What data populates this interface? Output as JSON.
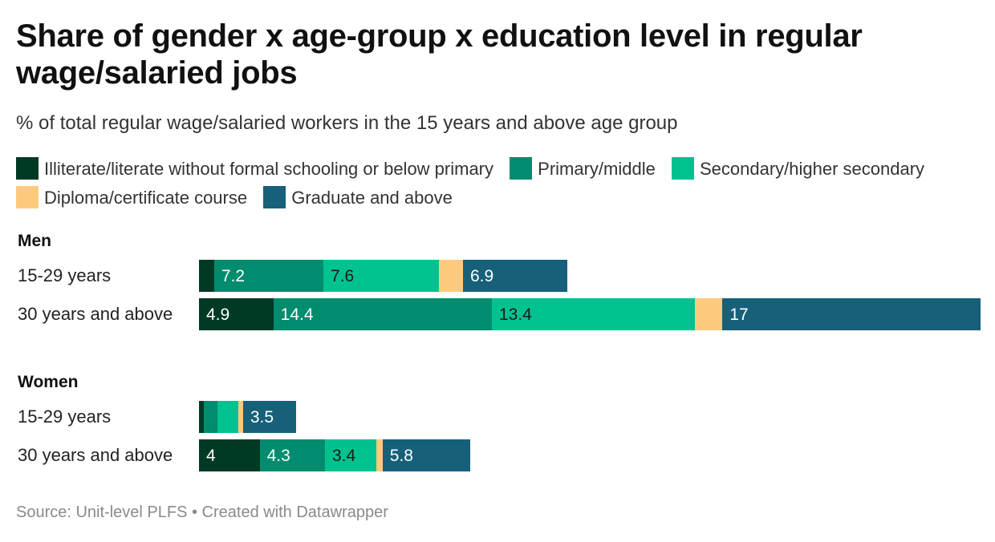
{
  "title": "Share of gender x age-group x education level in regular wage/salaried jobs",
  "subtitle": "% of total regular wage/salaried workers in the 15 years and above age group",
  "source": "Source: Unit-level PLFS • Created with Datawrapper",
  "legend": [
    {
      "label": "Illiterate/literate without formal schooling or below primary",
      "color": "#003a24"
    },
    {
      "label": "Primary/middle",
      "color": "#008c6e"
    },
    {
      "label": "Secondary/higher secondary",
      "color": "#00c28f"
    },
    {
      "label": "Diploma/certificate course",
      "color": "#fdca7d"
    },
    {
      "label": "Graduate and above",
      "color": "#16607a"
    }
  ],
  "chart_data": {
    "type": "bar",
    "orientation": "horizontal",
    "stacked": true,
    "title": "Share of gender x age-group x education level in regular wage/salaried jobs",
    "subtitle": "% of total regular wage/salaried workers in the 15 years and above age group",
    "xlim": [
      0,
      51.3
    ],
    "grid": false,
    "legend_position": "top",
    "groups": [
      {
        "name": "Men",
        "rows": [
          {
            "label": "15-29 years",
            "values": [
              1.0,
              7.2,
              7.6,
              1.6,
              6.9
            ],
            "labels": [
              "",
              "7.2",
              "7.6",
              "",
              "6.9"
            ]
          },
          {
            "label": "30 years and above",
            "values": [
              4.9,
              14.4,
              13.4,
              1.8,
              17.0
            ],
            "labels": [
              "4.9",
              "14.4",
              "13.4",
              "",
              "17"
            ]
          }
        ]
      },
      {
        "name": "Women",
        "rows": [
          {
            "label": "15-29 years",
            "values": [
              0.3,
              0.9,
              1.4,
              0.3,
              3.5
            ],
            "labels": [
              "",
              "",
              "",
              "",
              "3.5"
            ]
          },
          {
            "label": "30 years and above",
            "values": [
              4.0,
              4.3,
              3.4,
              0.4,
              5.8
            ],
            "labels": [
              "4",
              "4.3",
              "3.4",
              "",
              "5.8"
            ]
          }
        ]
      }
    ]
  }
}
